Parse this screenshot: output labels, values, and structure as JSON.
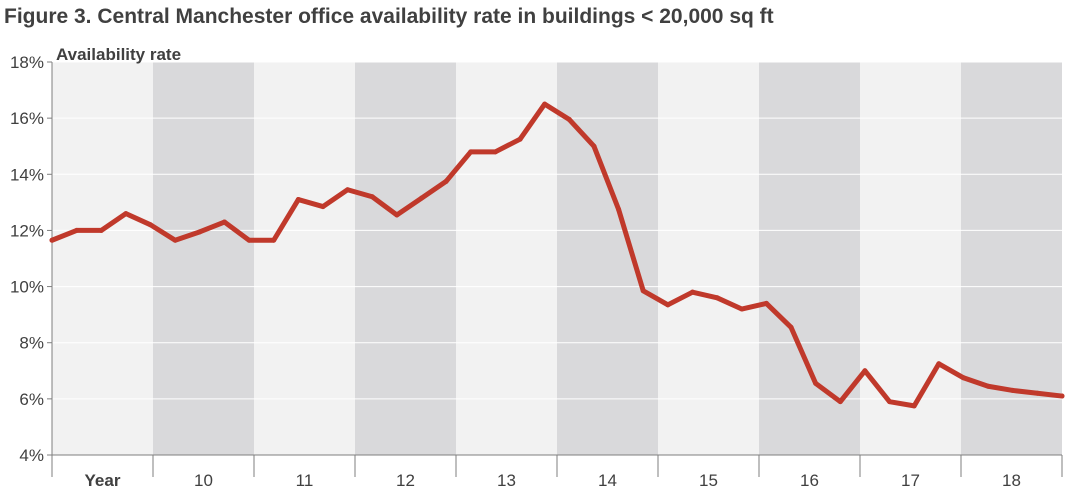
{
  "title": "Figure 3. Central Manchester office availability rate in buildings < 20,000 sq ft",
  "chart_data": {
    "type": "line",
    "ylabel": "Availability rate",
    "ylim": [
      4,
      18
    ],
    "yticks": [
      4,
      6,
      8,
      10,
      12,
      14,
      16,
      18
    ],
    "ytick_labels": [
      "4%",
      "6%",
      "8%",
      "10%",
      "12%",
      "14%",
      "16%",
      "18%"
    ],
    "x_period_labels": [
      "Year",
      "10",
      "11",
      "12",
      "13",
      "14",
      "15",
      "16",
      "17",
      "18"
    ],
    "band_colors": [
      "#f2f2f2",
      "#d9d9db"
    ],
    "line_color": "#c0392b",
    "series": [
      {
        "values": [
          11.65,
          12.0,
          12.0,
          12.6,
          12.2,
          11.65,
          11.95,
          12.3,
          11.65,
          11.65,
          13.1,
          12.85,
          13.45,
          13.2,
          12.55,
          13.15,
          13.75,
          14.8,
          14.8,
          15.25,
          16.5,
          15.95,
          15.0,
          12.75,
          9.85,
          9.35,
          9.8,
          9.6,
          9.2,
          9.4,
          8.55,
          6.55,
          5.9,
          7.0,
          5.9,
          5.75,
          7.25,
          6.75,
          6.45,
          6.3,
          6.2,
          6.1
        ]
      }
    ]
  }
}
